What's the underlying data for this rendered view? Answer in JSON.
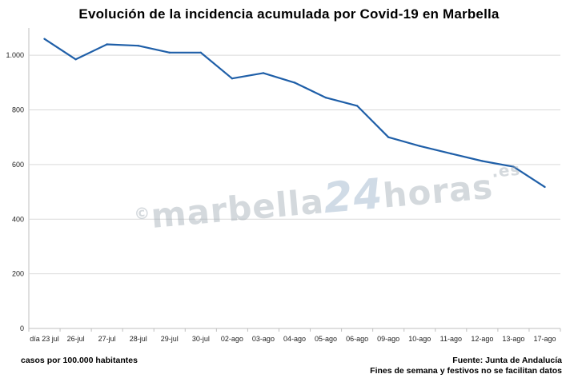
{
  "chart_data": {
    "type": "line",
    "title": "Evolución de la incidencia acumulada por Covid-19 en Marbella",
    "categories": [
      "día 23 jul",
      "26-jul",
      "27-jul",
      "28-jul",
      "29-jul",
      "30-jul",
      "02-ago",
      "03-ago",
      "04-ago",
      "05-ago",
      "06-ago",
      "09-ago",
      "10-ago",
      "11-ago",
      "12-ago",
      "13-ago",
      "17-ago"
    ],
    "series": [
      {
        "values": [
          1060,
          985,
          1040,
          1035,
          1010,
          1010,
          915,
          935,
          900,
          845,
          815,
          700,
          668,
          640,
          613,
          592,
          518
        ]
      }
    ],
    "ylim": [
      0,
      1100
    ],
    "yticks": [
      0,
      200,
      400,
      600,
      800,
      1000
    ],
    "ytick_labels": [
      "0",
      "200",
      "400",
      "600",
      "800",
      "1.000"
    ],
    "grid": true,
    "line_color": "#1f5fa8"
  },
  "notes": {
    "units": "casos por 100.000 habitantes",
    "source": "Fuente: Junta de Andalucía",
    "disclaimer": "Fines de semana y festivos no se facilitan datos"
  },
  "watermark": {
    "copyright": "©",
    "name": "marbella",
    "number": "24",
    "suffix": "horas",
    "tld": ".es"
  }
}
